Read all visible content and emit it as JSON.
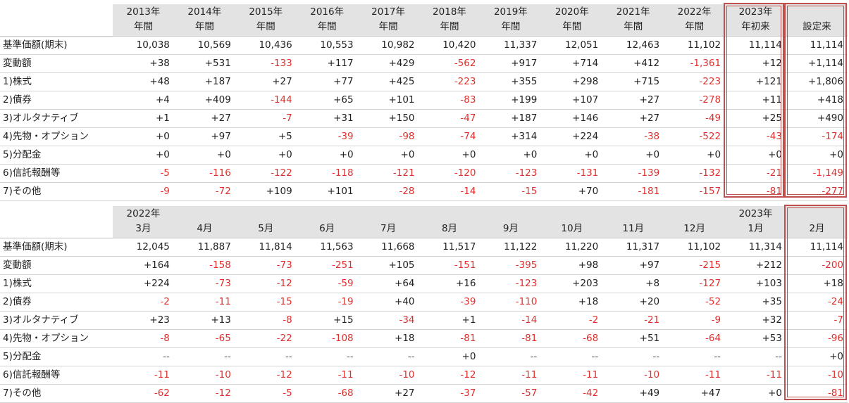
{
  "annual": {
    "header_top": [
      "2013年",
      "2014年",
      "2015年",
      "2016年",
      "2017年",
      "2018年",
      "2019年",
      "2020年",
      "2021年",
      "2022年",
      "2023年",
      ""
    ],
    "header_bottom": [
      "年間",
      "年間",
      "年間",
      "年間",
      "年間",
      "年間",
      "年間",
      "年間",
      "年間",
      "年間",
      "年初来",
      "設定来"
    ],
    "rows": [
      {
        "label": "基準価額(期末)",
        "values": [
          "10,038",
          "10,569",
          "10,436",
          "10,553",
          "10,982",
          "10,420",
          "11,337",
          "12,051",
          "12,463",
          "11,102",
          "11,114",
          "11,114"
        ]
      },
      {
        "label": "変動額",
        "values": [
          "+38",
          "+531",
          "-133",
          "+117",
          "+429",
          "-562",
          "+917",
          "+714",
          "+412",
          "-1,361",
          "+12",
          "+1,114"
        ]
      },
      {
        "label": "1)株式",
        "values": [
          "+48",
          "+187",
          "+27",
          "+77",
          "+425",
          "-223",
          "+355",
          "+298",
          "+715",
          "-223",
          "+121",
          "+1,806"
        ]
      },
      {
        "label": "2)債券",
        "values": [
          "+4",
          "+409",
          "-144",
          "+65",
          "+101",
          "-83",
          "+199",
          "+107",
          "+27",
          "-278",
          "+11",
          "+418"
        ]
      },
      {
        "label": "3)オルタナティブ",
        "values": [
          "+1",
          "+27",
          "-7",
          "+31",
          "+150",
          "-47",
          "+187",
          "+146",
          "+27",
          "-49",
          "+25",
          "+490"
        ]
      },
      {
        "label": "4)先物・オプション",
        "values": [
          "+0",
          "+97",
          "+5",
          "-39",
          "-98",
          "-74",
          "+314",
          "+224",
          "-38",
          "-522",
          "-43",
          "-174"
        ]
      },
      {
        "label": "5)分配金",
        "values": [
          "+0",
          "+0",
          "+0",
          "+0",
          "+0",
          "+0",
          "+0",
          "+0",
          "+0",
          "+0",
          "+0",
          "+0"
        ]
      },
      {
        "label": "6)信託報酬等",
        "values": [
          "-5",
          "-116",
          "-122",
          "-118",
          "-121",
          "-120",
          "-123",
          "-131",
          "-139",
          "-132",
          "-21",
          "-1,149"
        ]
      },
      {
        "label": "7)その他",
        "values": [
          "-9",
          "-72",
          "+109",
          "+101",
          "-28",
          "-14",
          "-15",
          "+70",
          "-181",
          "-157",
          "-81",
          "-277"
        ]
      }
    ]
  },
  "monthly": {
    "header_top": [
      "2022年",
      "",
      "",
      "",
      "",
      "",
      "",
      "",
      "",
      "",
      "2023年",
      ""
    ],
    "header_bottom": [
      "3月",
      "4月",
      "5月",
      "6月",
      "7月",
      "8月",
      "9月",
      "10月",
      "11月",
      "12月",
      "1月",
      "2月"
    ],
    "rows": [
      {
        "label": "基準価額(期末)",
        "values": [
          "12,045",
          "11,887",
          "11,814",
          "11,563",
          "11,668",
          "11,517",
          "11,122",
          "11,220",
          "11,317",
          "11,102",
          "11,314",
          "11,114"
        ]
      },
      {
        "label": "変動額",
        "values": [
          "+164",
          "-158",
          "-73",
          "-251",
          "+105",
          "-151",
          "-395",
          "+98",
          "+97",
          "-215",
          "+212",
          "-200"
        ]
      },
      {
        "label": "1)株式",
        "values": [
          "+224",
          "-73",
          "-12",
          "-59",
          "+64",
          "+16",
          "-123",
          "+203",
          "+8",
          "-127",
          "+103",
          "+18"
        ]
      },
      {
        "label": "2)債券",
        "values": [
          "-2",
          "-11",
          "-15",
          "-19",
          "+40",
          "-39",
          "-110",
          "+18",
          "+20",
          "-52",
          "+35",
          "-24"
        ]
      },
      {
        "label": "3)オルタナティブ",
        "values": [
          "+23",
          "+13",
          "-8",
          "+15",
          "-34",
          "+1",
          "-14",
          "-2",
          "-21",
          "-9",
          "+32",
          "-7"
        ]
      },
      {
        "label": "4)先物・オプション",
        "values": [
          "-8",
          "-65",
          "-22",
          "-108",
          "+18",
          "-81",
          "-81",
          "-68",
          "+51",
          "-64",
          "+53",
          "-96"
        ]
      },
      {
        "label": "5)分配金",
        "values": [
          "--",
          "--",
          "--",
          "--",
          "--",
          "+0",
          "--",
          "--",
          "--",
          "--",
          "--",
          "+0"
        ]
      },
      {
        "label": "6)信託報酬等",
        "values": [
          "-11",
          "-10",
          "-12",
          "-11",
          "-10",
          "-12",
          "-11",
          "-11",
          "-10",
          "-11",
          "-11",
          "-10"
        ]
      },
      {
        "label": "7)その他",
        "values": [
          "-62",
          "-12",
          "-5",
          "-68",
          "+27",
          "-37",
          "-57",
          "-42",
          "+49",
          "+47",
          "+0",
          "-81"
        ]
      }
    ]
  },
  "colors": {
    "negative": "#e0302e",
    "highlight_box": "#c0504d",
    "header_bg": "#e3e3e3"
  }
}
